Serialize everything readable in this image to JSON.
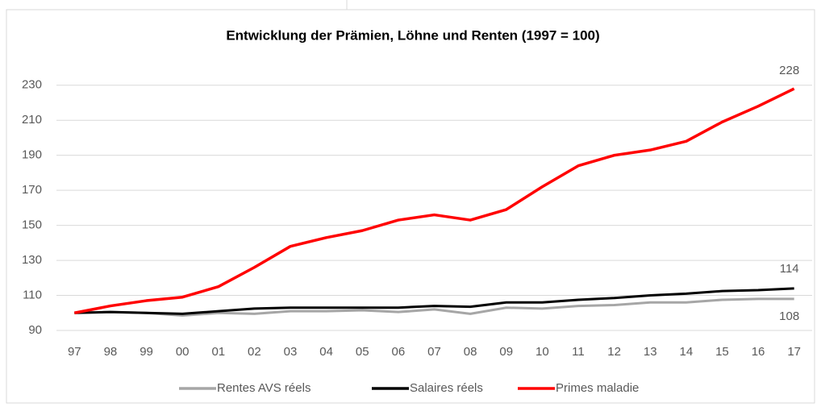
{
  "chart_data": {
    "type": "line",
    "title": "Entwicklung der Prämien, Löhne und Renten (1997 = 100)",
    "categories": [
      "97",
      "98",
      "99",
      "00",
      "01",
      "02",
      "03",
      "04",
      "05",
      "06",
      "07",
      "08",
      "09",
      "10",
      "11",
      "12",
      "13",
      "14",
      "15",
      "16",
      "17"
    ],
    "series": [
      {
        "name": "Rentes AVS réels",
        "color": "#a6a6a6",
        "values": [
          100,
          100.5,
          100,
          98.5,
          100,
          99.5,
          101,
          101,
          101.5,
          100.5,
          102,
          99.5,
          103,
          102.5,
          104,
          104.5,
          106,
          106,
          107.5,
          108,
          108
        ]
      },
      {
        "name": "Salaires réels",
        "color": "#000000",
        "values": [
          100,
          100.5,
          100,
          99.5,
          101,
          102.5,
          103,
          103,
          103,
          103,
          104,
          103.5,
          106,
          106,
          107.5,
          108.5,
          110,
          111,
          112.5,
          113,
          114
        ]
      },
      {
        "name": "Primes maladie",
        "color": "#ff0000",
        "values": [
          100,
          104,
          107,
          109,
          115,
          126,
          138,
          143,
          147,
          153,
          156,
          153,
          159,
          172,
          184,
          190,
          193,
          198,
          209,
          218,
          228
        ]
      }
    ],
    "ylim": [
      90,
      240
    ],
    "yticks": [
      90,
      110,
      130,
      150,
      170,
      190,
      210,
      230
    ],
    "grid": true,
    "legend": "bottom"
  }
}
